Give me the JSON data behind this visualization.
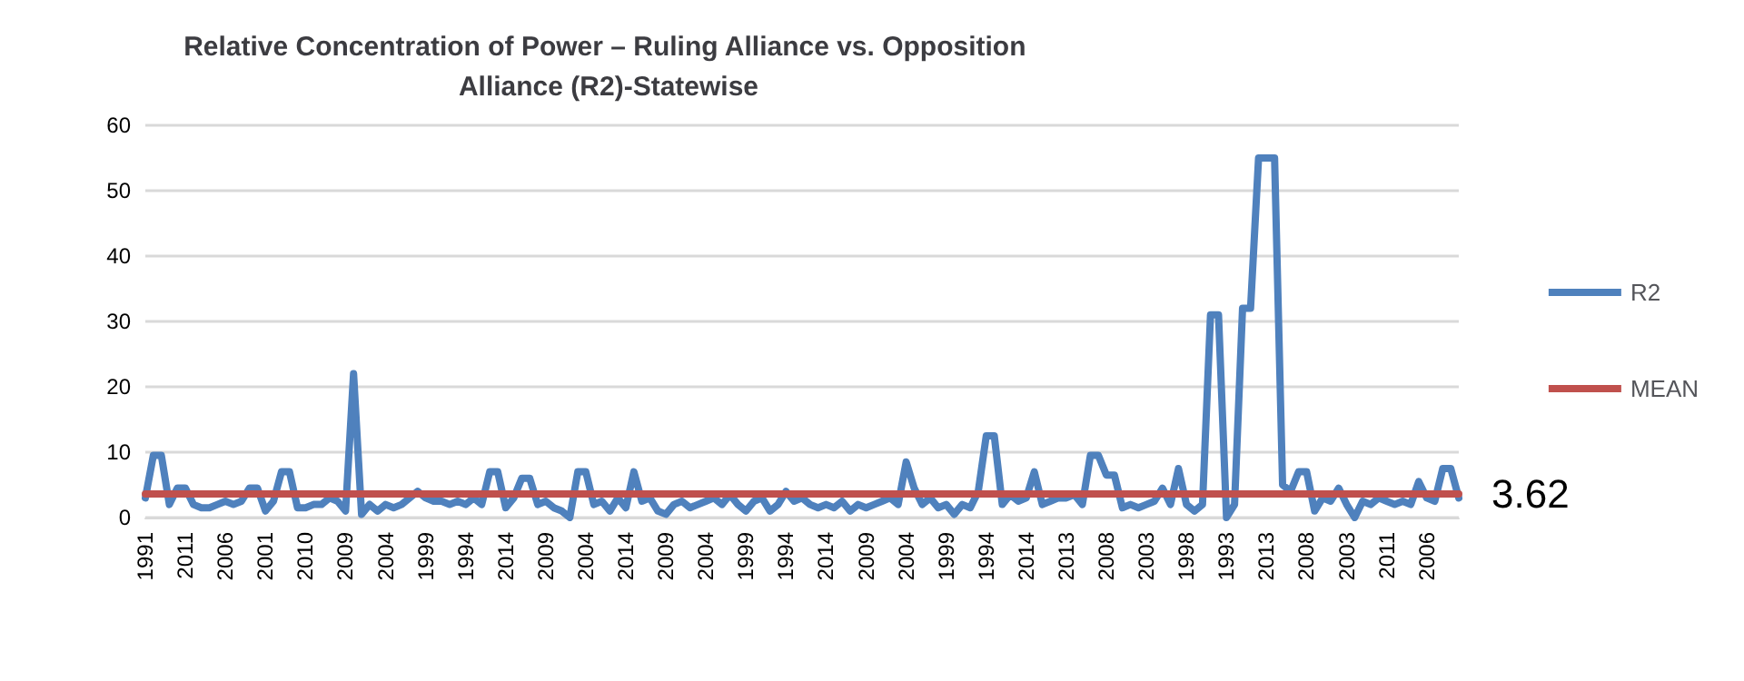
{
  "chart_data": {
    "type": "line",
    "title": "Relative Concentration of Power – Ruling Alliance vs. Opposition Alliance (R2)-Statewise",
    "categories": [
      "1991",
      null,
      null,
      null,
      null,
      "2011",
      null,
      null,
      null,
      null,
      "2006",
      null,
      null,
      null,
      null,
      "2001",
      null,
      null,
      null,
      null,
      "2010",
      null,
      null,
      null,
      null,
      "2009",
      null,
      null,
      null,
      null,
      "2004",
      null,
      null,
      null,
      null,
      "1999",
      null,
      null,
      null,
      null,
      "1994",
      null,
      null,
      null,
      null,
      "2014",
      null,
      null,
      null,
      null,
      "2009",
      null,
      null,
      null,
      null,
      "2004",
      null,
      null,
      null,
      null,
      "2014",
      null,
      null,
      null,
      null,
      "2009",
      null,
      null,
      null,
      null,
      "2004",
      null,
      null,
      null,
      null,
      "1999",
      null,
      null,
      null,
      null,
      "1994",
      null,
      null,
      null,
      null,
      "2014",
      null,
      null,
      null,
      null,
      "2009",
      null,
      null,
      null,
      null,
      "2004",
      null,
      null,
      null,
      null,
      "1999",
      null,
      null,
      null,
      null,
      "1994",
      null,
      null,
      null,
      null,
      "2014",
      null,
      null,
      null,
      null,
      "2013",
      null,
      null,
      null,
      null,
      "2008",
      null,
      null,
      null,
      null,
      "2003",
      null,
      null,
      null,
      null,
      "1998",
      null,
      null,
      null,
      null,
      "1993",
      null,
      null,
      null,
      null,
      "2013",
      null,
      null,
      null,
      null,
      "2008",
      null,
      null,
      null,
      null,
      "2003",
      null,
      null,
      null,
      null,
      "2011",
      null,
      null,
      null,
      null,
      "2006",
      null,
      null,
      null,
      null
    ],
    "series": [
      {
        "name": "R2",
        "color": "#4f81bd",
        "values": [
          3,
          9.5,
          9.5,
          2,
          4.5,
          4.5,
          2,
          1.5,
          1.5,
          2,
          2.5,
          2,
          2.5,
          4.5,
          4.5,
          1,
          2.5,
          7,
          7,
          1.5,
          1.5,
          2,
          2,
          3,
          2.5,
          1,
          22,
          0.5,
          2,
          1,
          2,
          1.5,
          2,
          3,
          4,
          3,
          2.5,
          2.5,
          2,
          2.5,
          2,
          3,
          2,
          7,
          7,
          1.5,
          3,
          6,
          6,
          2,
          2.5,
          1.5,
          1,
          0,
          7,
          7,
          2,
          2.5,
          1,
          3,
          1.5,
          7,
          2.5,
          3,
          1,
          0.5,
          2,
          2.5,
          1.5,
          2,
          2.5,
          3,
          2,
          3.5,
          2,
          1,
          2.5,
          3,
          1,
          2,
          4,
          2.5,
          3,
          2,
          1.5,
          2,
          1.5,
          2.5,
          1,
          2,
          1.5,
          2,
          2.5,
          3,
          2,
          8.5,
          4.5,
          2,
          3,
          1.5,
          2,
          0.5,
          2,
          1.5,
          4,
          12.5,
          12.5,
          2,
          3.5,
          2.5,
          3,
          7,
          2,
          2.5,
          3,
          3,
          3.5,
          2,
          9.5,
          9.5,
          6.5,
          6.5,
          1.5,
          2,
          1.5,
          2,
          2.5,
          4.5,
          2,
          7.5,
          2,
          1,
          2,
          31,
          31,
          0,
          2,
          32,
          32,
          55,
          55,
          55,
          5,
          4,
          7,
          7,
          1,
          3,
          2.5,
          4.5,
          2,
          0,
          2.5,
          2,
          3,
          2.5,
          2,
          2.5,
          2,
          5.5,
          3,
          2.5,
          7.5,
          7.5,
          3
        ]
      },
      {
        "name": "MEAN",
        "color": "#c0504d",
        "values": [
          3.62,
          3.62,
          3.62,
          3.62,
          3.62,
          3.62,
          3.62,
          3.62,
          3.62,
          3.62,
          3.62,
          3.62,
          3.62,
          3.62,
          3.62,
          3.62,
          3.62,
          3.62,
          3.62,
          3.62,
          3.62,
          3.62,
          3.62,
          3.62,
          3.62,
          3.62,
          3.62,
          3.62,
          3.62,
          3.62,
          3.62,
          3.62,
          3.62,
          3.62,
          3.62,
          3.62,
          3.62,
          3.62,
          3.62,
          3.62,
          3.62,
          3.62,
          3.62,
          3.62,
          3.62,
          3.62,
          3.62,
          3.62,
          3.62,
          3.62,
          3.62,
          3.62,
          3.62,
          3.62,
          3.62,
          3.62,
          3.62,
          3.62,
          3.62,
          3.62,
          3.62,
          3.62,
          3.62,
          3.62,
          3.62,
          3.62,
          3.62,
          3.62,
          3.62,
          3.62,
          3.62,
          3.62,
          3.62,
          3.62,
          3.62,
          3.62,
          3.62,
          3.62,
          3.62,
          3.62,
          3.62,
          3.62,
          3.62,
          3.62,
          3.62,
          3.62,
          3.62,
          3.62,
          3.62,
          3.62,
          3.62,
          3.62,
          3.62,
          3.62,
          3.62,
          3.62,
          3.62,
          3.62,
          3.62,
          3.62,
          3.62,
          3.62,
          3.62,
          3.62,
          3.62,
          3.62,
          3.62,
          3.62,
          3.62,
          3.62,
          3.62,
          3.62,
          3.62,
          3.62,
          3.62,
          3.62,
          3.62,
          3.62,
          3.62,
          3.62,
          3.62,
          3.62,
          3.62,
          3.62,
          3.62,
          3.62,
          3.62,
          3.62,
          3.62,
          3.62,
          3.62,
          3.62,
          3.62,
          3.62,
          3.62,
          3.62,
          3.62,
          3.62,
          3.62,
          3.62,
          3.62,
          3.62,
          3.62,
          3.62,
          3.62,
          3.62,
          3.62,
          3.62,
          3.62,
          3.62,
          3.62,
          3.62,
          3.62,
          3.62,
          3.62,
          3.62,
          3.62,
          3.62,
          3.62,
          3.62,
          3.62,
          3.62,
          3.62,
          3.62,
          3.62
        ],
        "value_labels": [
          null,
          null,
          null,
          null,
          null,
          null,
          null,
          null,
          null,
          null,
          null,
          null,
          null,
          null,
          null,
          null,
          null,
          null,
          null,
          null,
          null,
          null,
          null,
          null,
          null,
          null,
          null,
          null,
          null,
          null,
          null,
          null,
          null,
          null,
          null,
          null,
          null,
          null,
          null,
          null,
          null,
          null,
          null,
          null,
          null,
          null,
          null,
          null,
          null,
          null,
          null,
          null,
          null,
          null,
          null,
          null,
          null,
          null,
          null,
          null,
          null,
          null,
          null,
          null,
          null,
          null,
          null,
          null,
          null,
          null,
          null,
          null,
          null,
          null,
          null,
          null,
          null,
          null,
          null,
          null,
          null,
          null,
          null,
          null,
          null,
          null,
          null,
          null,
          null,
          null,
          null,
          null,
          null,
          null,
          null,
          null,
          null,
          null,
          null,
          null,
          null,
          null,
          null,
          null,
          null,
          null,
          null,
          null,
          null,
          null,
          null,
          null,
          null,
          null,
          null,
          null,
          null,
          null,
          null,
          null,
          null,
          null,
          null,
          null,
          null,
          null,
          null,
          null,
          null,
          null,
          null,
          null,
          null,
          null,
          null,
          null,
          null,
          null,
          null,
          null,
          null,
          null,
          null,
          null,
          null,
          null,
          null,
          null,
          null,
          null,
          null,
          null,
          null,
          null,
          null,
          null,
          null,
          null,
          null,
          null,
          null,
          null,
          null,
          null,
          "3.62"
        ]
      }
    ],
    "ylim": [
      0,
      60
    ],
    "yticks": [
      0,
      10,
      20,
      30,
      40,
      50,
      60
    ],
    "grid": "y",
    "legend": "right",
    "marker": "none",
    "line_style": "solid"
  }
}
